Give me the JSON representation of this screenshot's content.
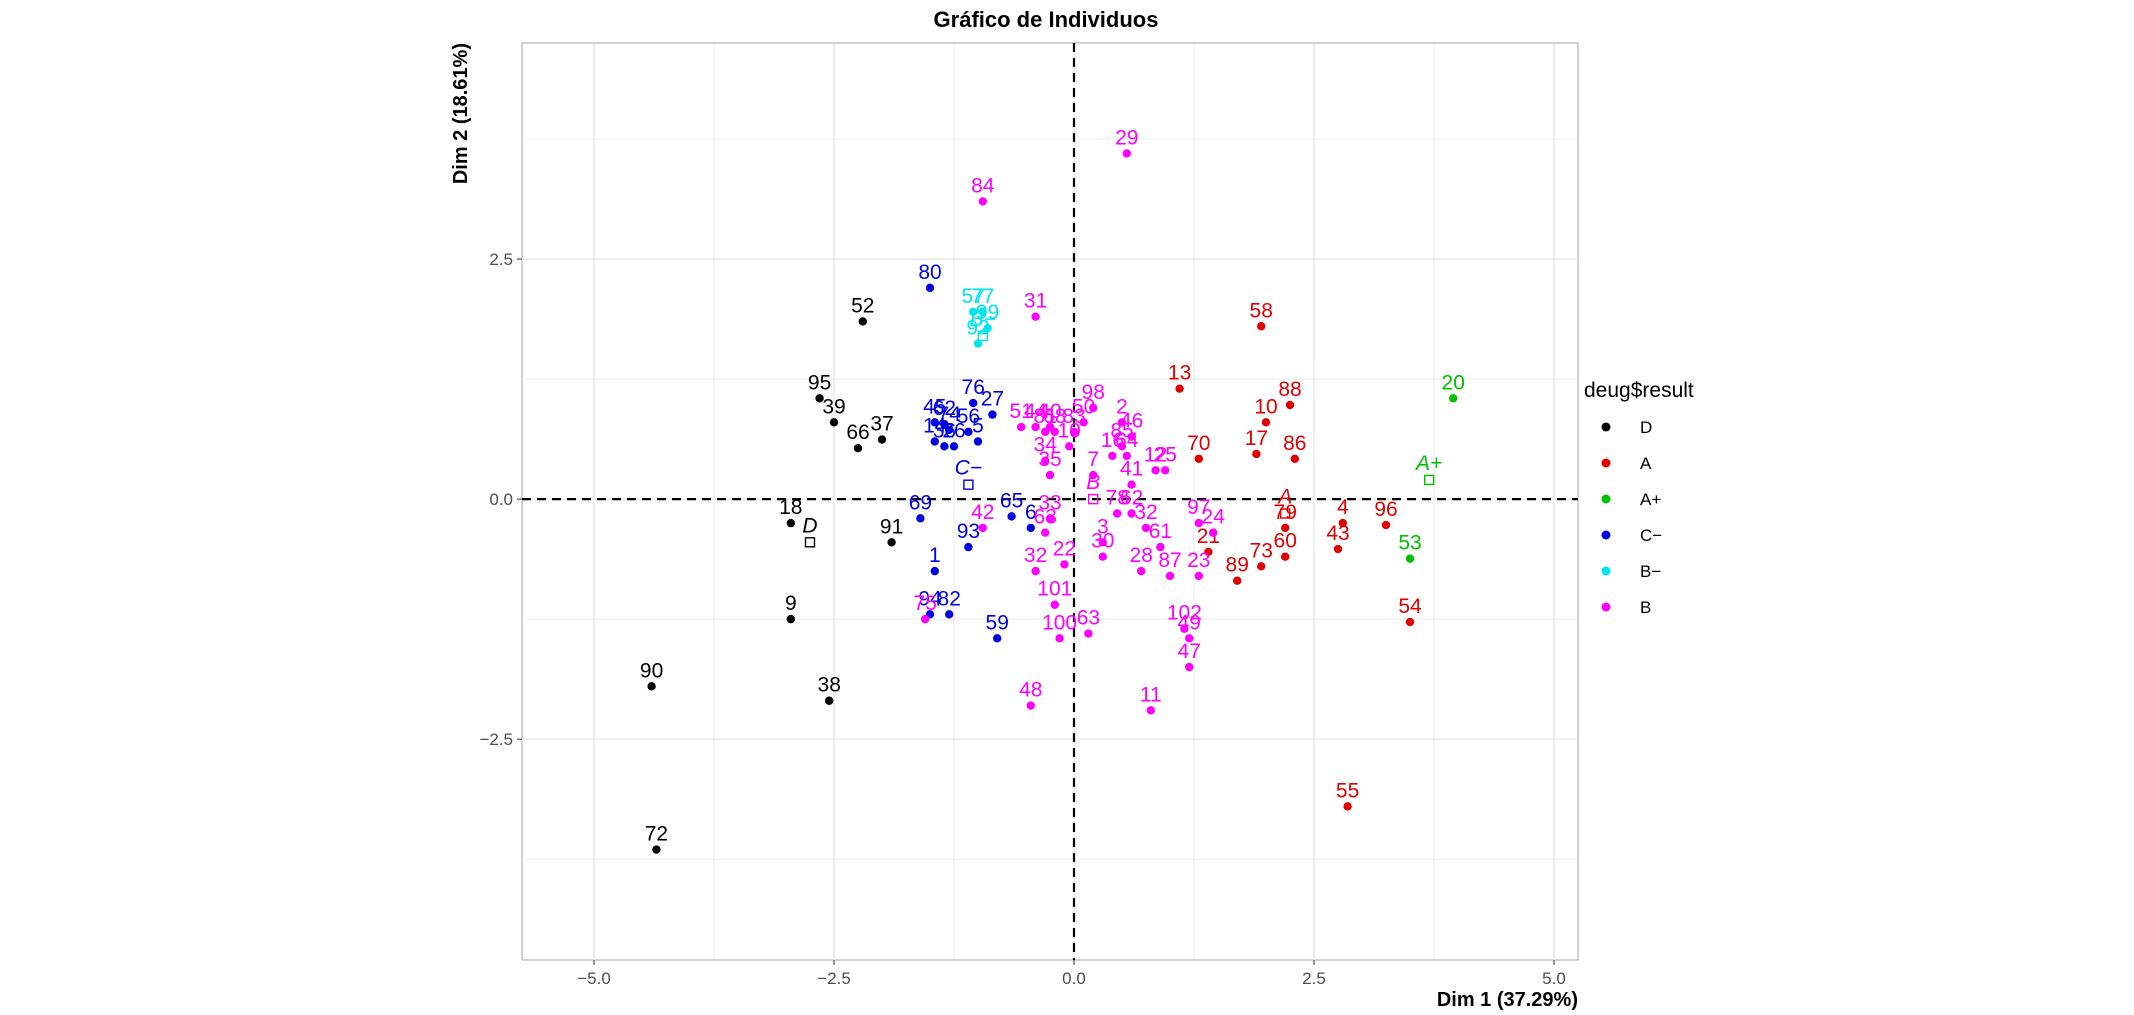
{
  "chart_data": {
    "type": "scatter",
    "title": "Gráfico de Individuos",
    "xlabel": "Dim 1 (37.29%)",
    "ylabel": "Dim 2 (18.61%)",
    "xlim": [
      -5.75,
      5.25
    ],
    "ylim": [
      -4.8,
      4.75
    ],
    "xticks": [
      -5.0,
      -2.5,
      0.0,
      2.5,
      5.0
    ],
    "xtick_labels": [
      "−5.0",
      "−2.5",
      "0.0",
      "2.5",
      "5.0"
    ],
    "yticks": [
      -2.5,
      0.0,
      2.5
    ],
    "ytick_labels": [
      "−2.5",
      "0.0",
      "2.5"
    ],
    "grid": true,
    "reference_lines": {
      "x": 0,
      "y": 0,
      "style": "dashed"
    },
    "legend": {
      "title": "deug$result",
      "position": "right",
      "entries": [
        {
          "name": "D",
          "color": "#000000"
        },
        {
          "name": "A",
          "color": "#e00000"
        },
        {
          "name": "A+",
          "color": "#00c000"
        },
        {
          "name": "C−",
          "color": "#0000e0"
        },
        {
          "name": "B−",
          "color": "#00e5ee"
        },
        {
          "name": "B",
          "color": "#ff00ff"
        }
      ]
    },
    "category_centroids": [
      {
        "label": "D",
        "group": "D",
        "x": -2.75,
        "y": -0.45
      },
      {
        "label": "A",
        "group": "A",
        "x": 2.2,
        "y": -0.15
      },
      {
        "label": "A+",
        "group": "A+",
        "x": 3.7,
        "y": 0.2
      },
      {
        "label": "C−",
        "group": "C−",
        "x": -1.1,
        "y": 0.15
      },
      {
        "label": "B−",
        "group": "B−",
        "x": -0.95,
        "y": 1.7
      },
      {
        "label": "B",
        "group": "B",
        "x": 0.2,
        "y": 0.0
      }
    ],
    "series": [
      {
        "name": "D",
        "points": [
          {
            "label": "52",
            "x": -2.2,
            "y": 1.85
          },
          {
            "label": "95",
            "x": -2.65,
            "y": 1.05
          },
          {
            "label": "39",
            "x": -2.5,
            "y": 0.8
          },
          {
            "label": "66",
            "x": -2.25,
            "y": 0.53
          },
          {
            "label": "37",
            "x": -2.0,
            "y": 0.62
          },
          {
            "label": "18",
            "x": -2.95,
            "y": -0.25
          },
          {
            "label": "91",
            "x": -1.9,
            "y": -0.45
          },
          {
            "label": "9",
            "x": -2.95,
            "y": -1.25
          },
          {
            "label": "90",
            "x": -4.4,
            "y": -1.95
          },
          {
            "label": "38",
            "x": -2.55,
            "y": -2.1
          },
          {
            "label": "72",
            "x": -4.35,
            "y": -3.65
          }
        ]
      },
      {
        "name": "A",
        "points": [
          {
            "label": "58",
            "x": 1.95,
            "y": 1.8
          },
          {
            "label": "13",
            "x": 1.1,
            "y": 1.15
          },
          {
            "label": "88",
            "x": 2.25,
            "y": 0.98
          },
          {
            "label": "10",
            "x": 2.0,
            "y": 0.8
          },
          {
            "label": "70",
            "x": 1.3,
            "y": 0.42
          },
          {
            "label": "17",
            "x": 1.9,
            "y": 0.47
          },
          {
            "label": "86",
            "x": 2.3,
            "y": 0.42
          },
          {
            "label": "4",
            "x": 2.8,
            "y": -0.25
          },
          {
            "label": "96",
            "x": 3.25,
            "y": -0.27
          },
          {
            "label": "79",
            "x": 2.2,
            "y": -0.3
          },
          {
            "label": "43",
            "x": 2.75,
            "y": -0.52
          },
          {
            "label": "21",
            "x": 1.4,
            "y": -0.55
          },
          {
            "label": "60",
            "x": 2.2,
            "y": -0.6
          },
          {
            "label": "73",
            "x": 1.95,
            "y": -0.7
          },
          {
            "label": "89",
            "x": 1.7,
            "y": -0.85
          },
          {
            "label": "54",
            "x": 3.5,
            "y": -1.28
          },
          {
            "label": "55",
            "x": 2.85,
            "y": -3.2
          }
        ]
      },
      {
        "name": "A+",
        "points": [
          {
            "label": "20",
            "x": 3.95,
            "y": 1.05
          },
          {
            "label": "53",
            "x": 3.5,
            "y": -0.62
          }
        ]
      },
      {
        "name": "C−",
        "points": [
          {
            "label": "80",
            "x": -1.5,
            "y": 2.2
          },
          {
            "label": "76",
            "x": -1.05,
            "y": 1.0
          },
          {
            "label": "27",
            "x": -0.85,
            "y": 0.88
          },
          {
            "label": "45",
            "x": -1.45,
            "y": 0.8
          },
          {
            "label": "62",
            "x": -1.35,
            "y": 0.78
          },
          {
            "label": "74",
            "x": -1.3,
            "y": 0.72
          },
          {
            "label": "56",
            "x": -1.1,
            "y": 0.7
          },
          {
            "label": "14",
            "x": -1.45,
            "y": 0.6
          },
          {
            "label": "36",
            "x": -1.35,
            "y": 0.55
          },
          {
            "label": "26",
            "x": -1.25,
            "y": 0.55
          },
          {
            "label": "5",
            "x": -1.0,
            "y": 0.6
          },
          {
            "label": "69",
            "x": -1.6,
            "y": -0.2
          },
          {
            "label": "65",
            "x": -0.65,
            "y": -0.18
          },
          {
            "label": "6",
            "x": -0.45,
            "y": -0.3
          },
          {
            "label": "93",
            "x": -1.1,
            "y": -0.5
          },
          {
            "label": "1",
            "x": -1.45,
            "y": -0.75
          },
          {
            "label": "94",
            "x": -1.5,
            "y": -1.2
          },
          {
            "label": "82",
            "x": -1.3,
            "y": -1.2
          },
          {
            "label": "59",
            "x": -0.8,
            "y": -1.45
          }
        ]
      },
      {
        "name": "B−",
        "points": [
          {
            "label": "57",
            "x": -1.05,
            "y": 1.95
          },
          {
            "label": "77",
            "x": -0.95,
            "y": 1.95
          },
          {
            "label": "92",
            "x": -1.0,
            "y": 1.62
          },
          {
            "label": "99",
            "x": -0.9,
            "y": 1.78
          }
        ]
      },
      {
        "name": "B",
        "points": [
          {
            "label": "29",
            "x": 0.55,
            "y": 3.6
          },
          {
            "label": "84",
            "x": -0.95,
            "y": 3.1
          },
          {
            "label": "31",
            "x": -0.4,
            "y": 1.9
          },
          {
            "label": "98",
            "x": 0.2,
            "y": 0.95
          },
          {
            "label": "2",
            "x": 0.5,
            "y": 0.8
          },
          {
            "label": "50",
            "x": 0.1,
            "y": 0.8
          },
          {
            "label": "51",
            "x": -0.55,
            "y": 0.75
          },
          {
            "label": "44",
            "x": -0.4,
            "y": 0.75
          },
          {
            "label": "40",
            "x": -0.25,
            "y": 0.75
          },
          {
            "label": "81",
            "x": -0.3,
            "y": 0.7
          },
          {
            "label": "68",
            "x": -0.2,
            "y": 0.7
          },
          {
            "label": "83",
            "x": 0.0,
            "y": 0.7
          },
          {
            "label": "19",
            "x": -0.05,
            "y": 0.55
          },
          {
            "label": "46",
            "x": 0.6,
            "y": 0.65
          },
          {
            "label": "85",
            "x": 0.5,
            "y": 0.55
          },
          {
            "label": "34",
            "x": -0.3,
            "y": 0.4
          },
          {
            "label": "16",
            "x": 0.4,
            "y": 0.45
          },
          {
            "label": "64",
            "x": 0.55,
            "y": 0.45
          },
          {
            "label": "12",
            "x": 0.85,
            "y": 0.3
          },
          {
            "label": "25",
            "x": 0.95,
            "y": 0.3
          },
          {
            "label": "35",
            "x": -0.25,
            "y": 0.25
          },
          {
            "label": "7",
            "x": 0.2,
            "y": 0.25
          },
          {
            "label": "41",
            "x": 0.6,
            "y": 0.15
          },
          {
            "label": "33",
            "x": -0.25,
            "y": -0.2
          },
          {
            "label": "63",
            "x": -0.3,
            "y": -0.35
          },
          {
            "label": "42",
            "x": -0.95,
            "y": -0.3
          },
          {
            "label": "78",
            "x": 0.45,
            "y": -0.15
          },
          {
            "label": "62",
            "x": 0.6,
            "y": -0.15
          },
          {
            "label": "32",
            "x": 0.75,
            "y": -0.3
          },
          {
            "label": "97",
            "x": 1.3,
            "y": -0.25
          },
          {
            "label": "24",
            "x": 1.45,
            "y": -0.35
          },
          {
            "label": "3",
            "x": 0.3,
            "y": -0.45
          },
          {
            "label": "61",
            "x": 0.9,
            "y": -0.5
          },
          {
            "label": "30",
            "x": 0.3,
            "y": -0.6
          },
          {
            "label": "22",
            "x": -0.1,
            "y": -0.68
          },
          {
            "label": "32",
            "x": -0.4,
            "y": -0.75
          },
          {
            "label": "28",
            "x": 0.7,
            "y": -0.75
          },
          {
            "label": "87",
            "x": 1.0,
            "y": -0.8
          },
          {
            "label": "23",
            "x": 1.3,
            "y": -0.8
          },
          {
            "label": "101",
            "x": -0.2,
            "y": -1.1
          },
          {
            "label": "75",
            "x": -1.55,
            "y": -1.25
          },
          {
            "label": "102",
            "x": 1.15,
            "y": -1.35
          },
          {
            "label": "63",
            "x": 0.15,
            "y": -1.4
          },
          {
            "label": "49",
            "x": 1.2,
            "y": -1.45
          },
          {
            "label": "100",
            "x": -0.15,
            "y": -1.45
          },
          {
            "label": "47",
            "x": 1.2,
            "y": -1.75
          },
          {
            "label": "48",
            "x": -0.45,
            "y": -2.15
          },
          {
            "label": "11",
            "x": 0.8,
            "y": -2.2
          }
        ]
      }
    ]
  }
}
